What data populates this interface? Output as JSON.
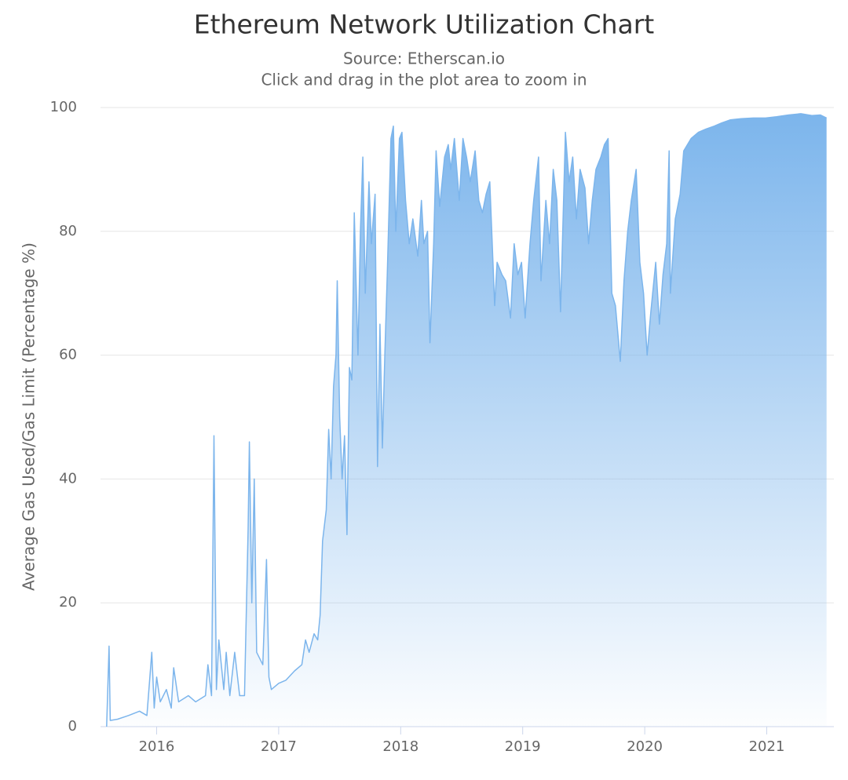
{
  "chart_data": {
    "type": "area",
    "title": "Ethereum Network Utilization Chart",
    "subtitle": [
      "Source: Etherscan.io",
      "Click and drag in the plot area to zoom in"
    ],
    "y_label": "Average Gas Used/Gas Limit (Percentage %)",
    "xlim": [
      2015.54,
      2021.55
    ],
    "xticks": [
      2016,
      2017,
      2018,
      2019,
      2020,
      2021
    ],
    "ylim": [
      0,
      100
    ],
    "yticks": [
      0,
      20,
      40,
      60,
      80,
      100
    ],
    "grid": true,
    "series": [
      {
        "color": "#7cb5ec",
        "x": [
          2015.59,
          2015.61,
          2015.62,
          2015.68,
          2015.77,
          2015.86,
          2015.92,
          2015.96,
          2015.98,
          2016.0,
          2016.03,
          2016.08,
          2016.12,
          2016.14,
          2016.18,
          2016.26,
          2016.32,
          2016.4,
          2016.42,
          2016.45,
          2016.47,
          2016.49,
          2016.51,
          2016.55,
          2016.57,
          2016.6,
          2016.64,
          2016.68,
          2016.72,
          2016.75,
          2016.76,
          2016.78,
          2016.8,
          2016.82,
          2016.87,
          2016.9,
          2016.92,
          2016.94,
          2017.0,
          2017.06,
          2017.13,
          2017.19,
          2017.22,
          2017.25,
          2017.29,
          2017.32,
          2017.34,
          2017.36,
          2017.39,
          2017.41,
          2017.43,
          2017.45,
          2017.47,
          2017.48,
          2017.5,
          2017.52,
          2017.54,
          2017.56,
          2017.58,
          2017.6,
          2017.62,
          2017.65,
          2017.67,
          2017.69,
          2017.71,
          2017.74,
          2017.76,
          2017.79,
          2017.81,
          2017.83,
          2017.85,
          2017.87,
          2017.89,
          2017.92,
          2017.94,
          2017.96,
          2017.99,
          2018.01,
          2018.04,
          2018.07,
          2018.1,
          2018.14,
          2018.17,
          2018.19,
          2018.22,
          2018.24,
          2018.27,
          2018.29,
          2018.32,
          2018.36,
          2018.39,
          2018.41,
          2018.44,
          2018.48,
          2018.51,
          2018.54,
          2018.57,
          2018.61,
          2018.64,
          2018.67,
          2018.7,
          2018.73,
          2018.77,
          2018.79,
          2018.83,
          2018.86,
          2018.9,
          2018.93,
          2018.96,
          2018.99,
          2019.02,
          2019.06,
          2019.09,
          2019.13,
          2019.15,
          2019.19,
          2019.22,
          2019.25,
          2019.28,
          2019.31,
          2019.35,
          2019.38,
          2019.41,
          2019.44,
          2019.47,
          2019.51,
          2019.54,
          2019.57,
          2019.6,
          2019.64,
          2019.67,
          2019.7,
          2019.73,
          2019.76,
          2019.8,
          2019.83,
          2019.86,
          2019.89,
          2019.93,
          2019.96,
          2019.99,
          2020.02,
          2020.05,
          2020.09,
          2020.12,
          2020.15,
          2020.18,
          2020.2,
          2020.21,
          2020.25,
          2020.29,
          2020.32,
          2020.38,
          2020.44,
          2020.5,
          2020.57,
          2020.63,
          2020.7,
          2020.79,
          2020.89,
          2020.99,
          2021.08,
          2021.18,
          2021.28,
          2021.37,
          2021.44,
          2021.49
        ],
        "values": [
          0,
          13,
          1,
          1.2,
          1.8,
          2.5,
          1.8,
          12,
          3,
          8,
          4,
          6,
          3,
          9.5,
          4,
          5,
          4,
          5,
          10,
          5,
          47,
          6,
          14,
          6,
          12,
          5,
          12,
          5,
          5,
          32,
          46,
          20,
          40,
          12,
          10,
          27,
          8,
          6,
          7,
          7.5,
          9,
          10,
          14,
          12,
          15,
          14,
          18,
          30,
          35,
          48,
          40,
          55,
          60,
          72,
          50,
          40,
          47,
          31,
          58,
          56,
          83,
          60,
          80,
          92,
          70,
          88,
          78,
          86,
          42,
          65,
          45,
          60,
          73,
          95,
          97,
          80,
          95,
          96,
          85,
          78,
          82,
          76,
          85,
          78,
          80,
          62,
          78,
          93,
          84,
          92,
          94,
          90,
          95,
          85,
          95,
          92,
          88,
          93,
          85,
          83,
          86,
          88,
          68,
          75,
          73,
          72,
          66,
          78,
          73,
          75,
          66,
          78,
          85,
          92,
          72,
          85,
          78,
          90,
          85,
          67,
          96,
          88,
          92,
          82,
          90,
          87,
          78,
          85,
          90,
          92,
          94,
          95,
          70,
          68,
          59,
          72,
          80,
          85,
          90,
          75,
          70,
          60,
          67,
          75,
          65,
          73,
          78,
          93,
          70,
          82,
          86,
          93,
          95,
          96,
          96.5,
          97,
          97.5,
          98,
          98.2,
          98.3,
          98.3,
          98.5,
          98.8,
          99,
          98.7,
          98.8,
          98.3
        ]
      }
    ]
  }
}
